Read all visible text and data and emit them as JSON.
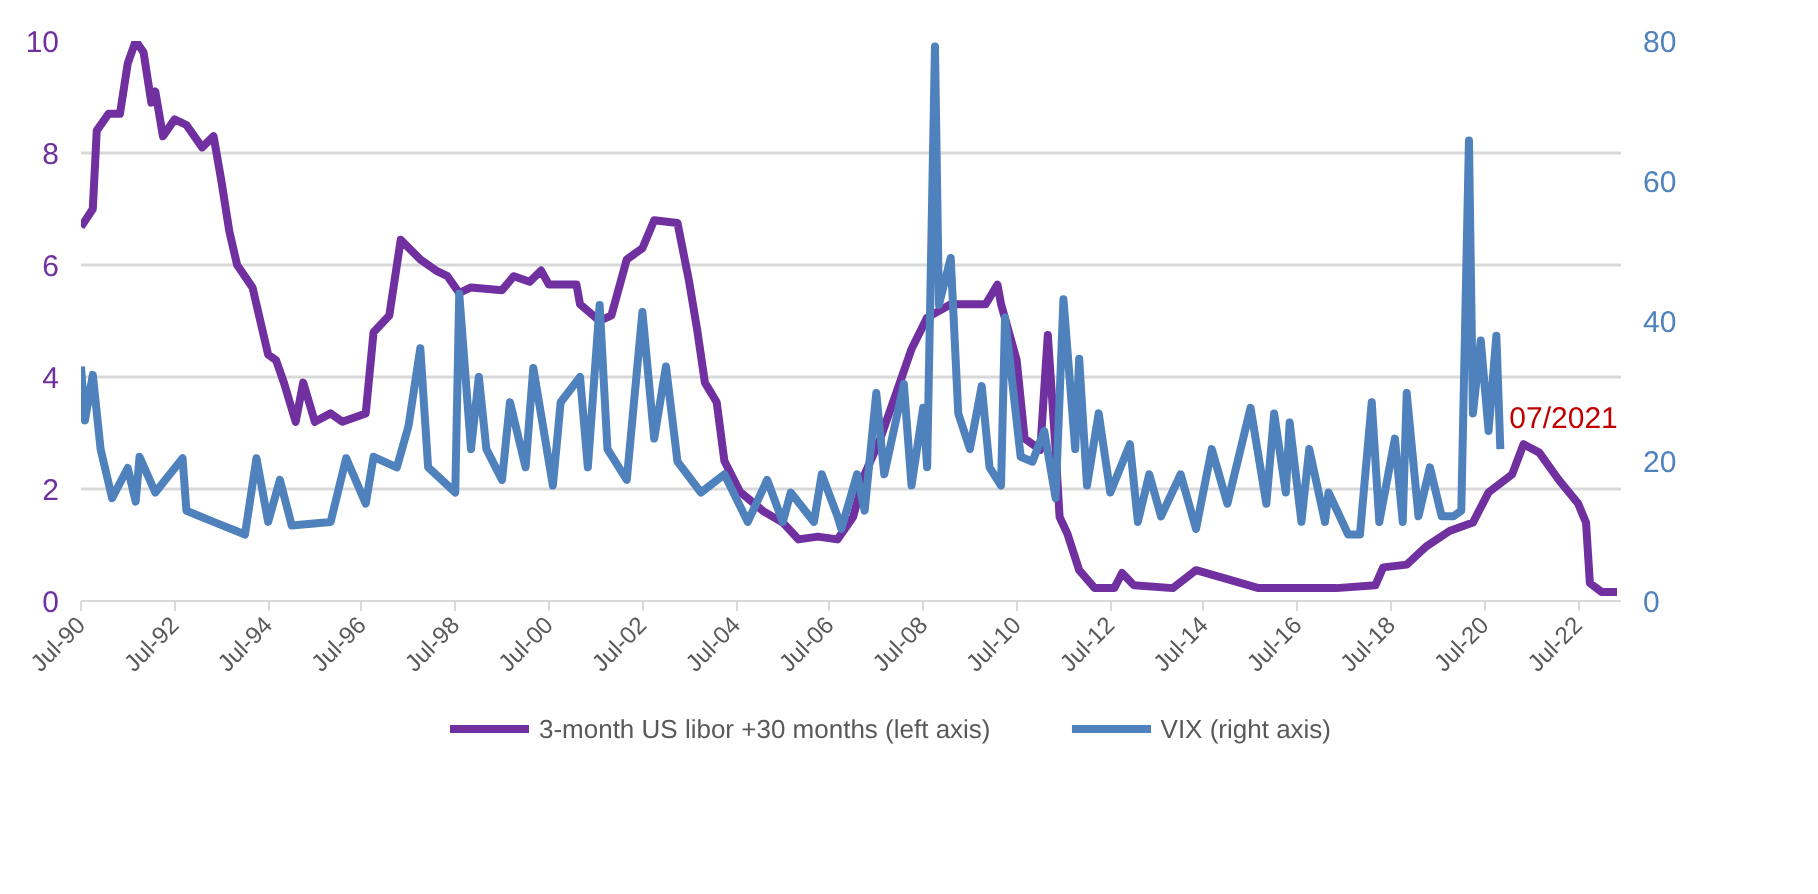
{
  "chart_data": {
    "type": "line",
    "xlim": [
      "1990-07",
      "2023-06"
    ],
    "xticks": [
      {
        "value": "1990-07",
        "label": "Jul-90"
      },
      {
        "value": "1992-07",
        "label": "Jul-92"
      },
      {
        "value": "1994-07",
        "label": "Jul-94"
      },
      {
        "value": "1996-07",
        "label": "Jul-96"
      },
      {
        "value": "1998-07",
        "label": "Jul-98"
      },
      {
        "value": "2000-07",
        "label": "Jul-00"
      },
      {
        "value": "2002-07",
        "label": "Jul-02"
      },
      {
        "value": "2004-07",
        "label": "Jul-04"
      },
      {
        "value": "2006-07",
        "label": "Jul-06"
      },
      {
        "value": "2008-07",
        "label": "Jul-08"
      },
      {
        "value": "2010-07",
        "label": "Jul-10"
      },
      {
        "value": "2012-07",
        "label": "Jul-12"
      },
      {
        "value": "2014-07",
        "label": "Jul-14"
      },
      {
        "value": "2016-07",
        "label": "Jul-16"
      },
      {
        "value": "2018-07",
        "label": "Jul-18"
      },
      {
        "value": "2020-07",
        "label": "Jul-20"
      },
      {
        "value": "2022-07",
        "label": "Jul-22"
      }
    ],
    "ylim": [
      0,
      10
    ],
    "yticks": [
      0,
      2,
      4,
      6,
      8,
      10
    ],
    "y2lim": [
      0,
      80
    ],
    "y2ticks": [
      0,
      20,
      40,
      60,
      80
    ],
    "grid": "y",
    "legend": "bottom",
    "annotations": [
      {
        "text": "07/2021",
        "x": "2021-07",
        "y": 2.8
      }
    ],
    "series": [
      {
        "name": "3-month US libor +30 months (left axis)",
        "color": "#7030a0",
        "x": [
          "1990-07",
          "1990-10",
          "1990-11",
          "1991-02",
          "1991-05",
          "1991-07",
          "1991-09",
          "1991-11",
          "1992-01",
          "1992-02",
          "1992-04",
          "1992-07",
          "1992-10",
          "1993-02",
          "1993-05",
          "1993-07",
          "1993-09",
          "1993-11",
          "1994-03",
          "1994-07",
          "1994-09",
          "1994-11",
          "1995-02",
          "1995-04",
          "1995-07",
          "1995-11",
          "1996-02",
          "1996-08",
          "1996-10",
          "1997-02",
          "1997-05",
          "1997-10",
          "1998-02",
          "1998-05",
          "1998-08",
          "1998-11",
          "1999-07",
          "1999-10",
          "2000-02",
          "2000-05",
          "2000-07",
          "2001-02",
          "2001-03",
          "2001-08",
          "2001-11",
          "2002-03",
          "2002-07",
          "2002-10",
          "2003-04",
          "2003-07",
          "2003-09",
          "2003-11",
          "2004-02",
          "2004-04",
          "2004-08",
          "2005-02",
          "2005-07",
          "2005-11",
          "2006-04",
          "2006-09",
          "2007-01",
          "2007-04",
          "2007-08",
          "2008-01",
          "2008-04",
          "2008-08",
          "2009-02",
          "2009-11",
          "2010-02",
          "2010-03",
          "2010-07",
          "2010-09",
          "2011-01",
          "2011-03",
          "2011-05",
          "2011-06",
          "2011-08",
          "2011-11",
          "2012-03",
          "2012-08",
          "2012-10",
          "2013-01",
          "2013-11",
          "2014-05",
          "2015-01",
          "2015-09",
          "2017-05",
          "2018-03",
          "2018-05",
          "2018-11",
          "2019-04",
          "2019-10",
          "2020-04",
          "2020-08",
          "2021-02",
          "2021-05",
          "2021-09",
          "2022-02",
          "2022-07",
          "2022-09",
          "2022-10",
          "2023-01",
          "2023-05"
        ],
        "values": [
          6.68,
          7.0,
          8.4,
          8.7,
          8.7,
          9.6,
          10.0,
          9.8,
          8.9,
          9.1,
          8.3,
          8.6,
          8.5,
          8.1,
          8.3,
          7.5,
          6.6,
          6.0,
          5.6,
          4.4,
          4.3,
          3.9,
          3.2,
          3.9,
          3.2,
          3.35,
          3.2,
          3.35,
          4.8,
          5.1,
          6.45,
          6.1,
          5.9,
          5.8,
          5.5,
          5.6,
          5.55,
          5.8,
          5.7,
          5.9,
          5.65,
          5.65,
          5.3,
          5.0,
          5.1,
          6.1,
          6.3,
          6.8,
          6.75,
          5.7,
          4.85,
          3.9,
          3.55,
          2.5,
          1.95,
          1.6,
          1.4,
          1.1,
          1.15,
          1.1,
          1.5,
          2.26,
          2.9,
          3.9,
          4.5,
          5.06,
          5.3,
          5.3,
          5.65,
          5.3,
          4.3,
          2.9,
          2.7,
          4.75,
          2.7,
          1.5,
          1.2,
          0.55,
          0.23,
          0.23,
          0.5,
          0.28,
          0.23,
          0.55,
          0.39,
          0.23,
          0.23,
          0.28,
          0.6,
          0.65,
          0.97,
          1.25,
          1.4,
          1.94,
          2.26,
          2.8,
          2.65,
          2.16,
          1.74,
          1.4,
          0.32,
          0.16,
          0.16
        ]
      },
      {
        "name": "VIX (right axis)",
        "color": "#4f81bd",
        "axis": "y2",
        "x": [
          "1990-07",
          "1990-08",
          "1990-10",
          "1990-12",
          "1991-03",
          "1991-07",
          "1991-09",
          "1991-10",
          "1992-02",
          "1992-09",
          "1992-10",
          "1993-05",
          "1994-01",
          "1994-04",
          "1994-07",
          "1994-10",
          "1995-01",
          "1995-11",
          "1996-03",
          "1996-08",
          "1996-10",
          "1997-04",
          "1997-07",
          "1997-10",
          "1997-12",
          "1998-07",
          "1998-08",
          "1998-11",
          "1999-01",
          "1999-03",
          "1999-07",
          "1999-09",
          "2000-01",
          "2000-03",
          "2000-08",
          "2000-10",
          "2001-03",
          "2001-05",
          "2001-08",
          "2001-10",
          "2002-03",
          "2002-07",
          "2002-10",
          "2003-01",
          "2003-04",
          "2003-10",
          "2004-04",
          "2004-10",
          "2005-03",
          "2005-07",
          "2005-09",
          "2006-03",
          "2006-05",
          "2006-09",
          "2006-10",
          "2007-02",
          "2007-04",
          "2007-07",
          "2007-09",
          "2008-02",
          "2008-04",
          "2008-07",
          "2008-08",
          "2008-10",
          "2008-11",
          "2009-02",
          "2009-04",
          "2009-07",
          "2009-10",
          "2009-12",
          "2010-03",
          "2010-04",
          "2010-08",
          "2010-11",
          "2011-02",
          "2011-05",
          "2011-07",
          "2011-10",
          "2011-11",
          "2012-01",
          "2012-04",
          "2012-07",
          "2012-12",
          "2013-02",
          "2013-05",
          "2013-08",
          "2014-01",
          "2014-05",
          "2014-09",
          "2015-01",
          "2015-07",
          "2015-11",
          "2016-01",
          "2016-04",
          "2016-05",
          "2016-08",
          "2016-10",
          "2017-02",
          "2017-03",
          "2017-08",
          "2017-11",
          "2018-02",
          "2018-04",
          "2018-08",
          "2018-10",
          "2018-11",
          "2019-02",
          "2019-05",
          "2019-08",
          "2019-11",
          "2020-01",
          "2020-03",
          "2020-04",
          "2020-06",
          "2020-08",
          "2020-10",
          "2020-11"
        ],
        "values": [
          33.5,
          25.8,
          32.3,
          21.7,
          14.7,
          19,
          14.2,
          20.6,
          15.5,
          20.4,
          12.9,
          11.3,
          9.5,
          20.4,
          11.3,
          17.3,
          10.8,
          11.3,
          20.4,
          13.9,
          20.6,
          19.1,
          25,
          36.1,
          19.1,
          15.5,
          43.9,
          21.7,
          32,
          21.7,
          17.3,
          28.4,
          19.1,
          33.3,
          16.5,
          28.4,
          32,
          19.1,
          42.3,
          21.7,
          17.3,
          41.3,
          23.2,
          33.5,
          19.9,
          15.5,
          18.1,
          11.3,
          17.3,
          11.3,
          15.5,
          11.3,
          18.1,
          12.1,
          10.3,
          18.1,
          12.9,
          29.7,
          18.1,
          31,
          16.5,
          27.6,
          19.1,
          79.2,
          42.3,
          49,
          26.8,
          21.7,
          30.7,
          19.1,
          16.5,
          40.5,
          20.6,
          19.9,
          24.3,
          14.7,
          43.1,
          21.7,
          34.6,
          16.5,
          26.8,
          15.5,
          22.4,
          11.3,
          18.1,
          12.1,
          18.1,
          10.3,
          21.7,
          13.9,
          27.6,
          13.9,
          26.8,
          15.5,
          25.5,
          11.3,
          21.7,
          11.3,
          15.5,
          9.5,
          9.5,
          28.4,
          11.3,
          23.2,
          11.3,
          29.7,
          12.1,
          19.1,
          12.1,
          12.1,
          12.9,
          65.8,
          26.8,
          37.2,
          24.3,
          37.9,
          21.7
        ]
      }
    ]
  }
}
